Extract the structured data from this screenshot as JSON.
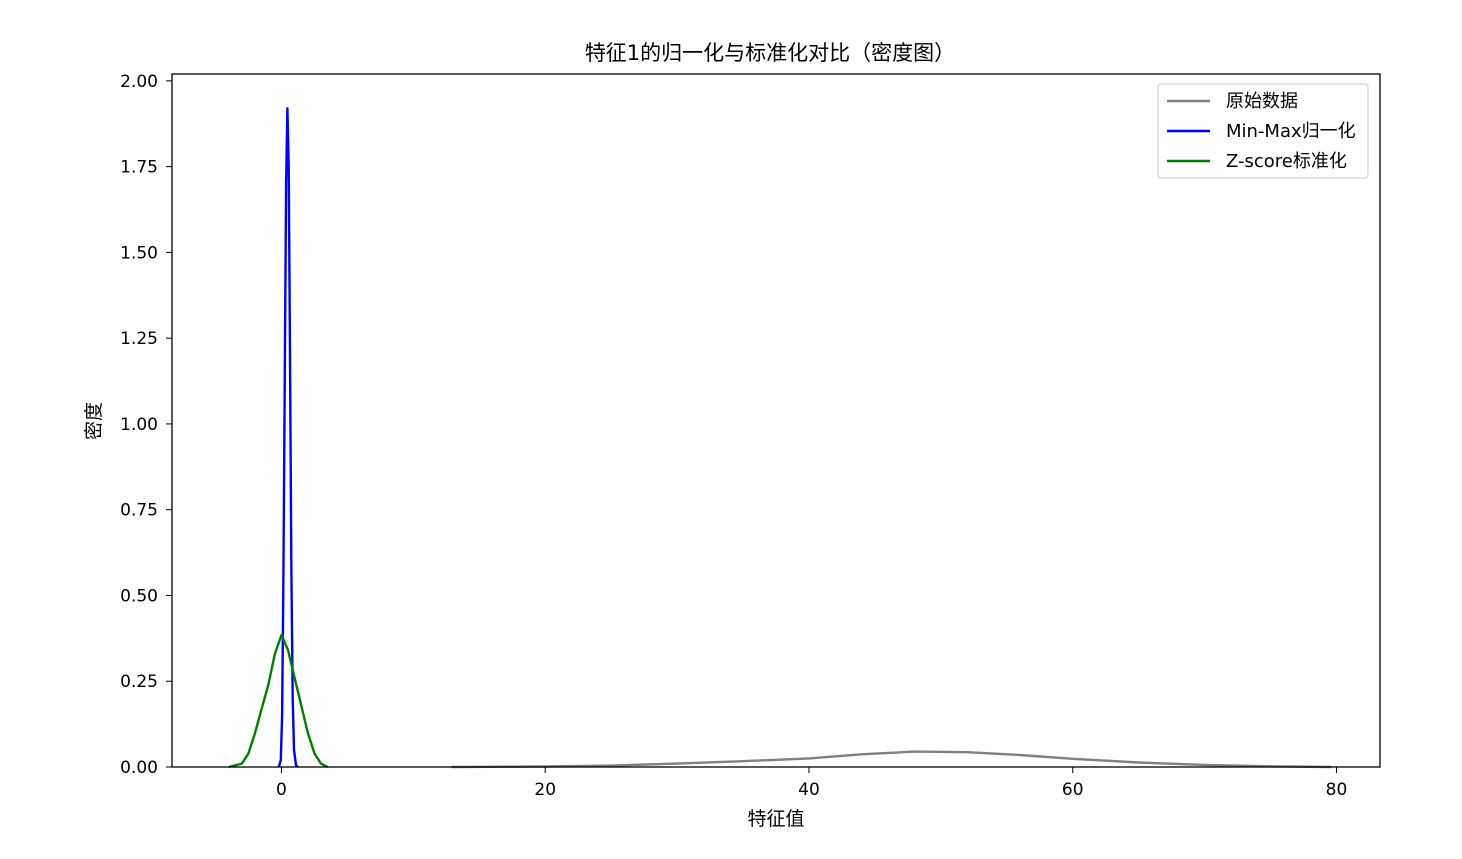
{
  "chart_data": {
    "type": "line",
    "title": "特征1的归一化与标准化对比（密度图）",
    "xlabel": "特征值",
    "ylabel": "密度",
    "xlim": [
      -8.3,
      83.3
    ],
    "ylim": [
      0,
      2.02
    ],
    "xticks": [
      0,
      20,
      40,
      60,
      80
    ],
    "xtick_labels": [
      "0",
      "20",
      "40",
      "60",
      "80"
    ],
    "yticks": [
      0,
      0.25,
      0.5,
      0.75,
      1.0,
      1.25,
      1.5,
      1.75,
      2.0
    ],
    "ytick_labels": [
      "0.00",
      "0.25",
      "0.50",
      "0.75",
      "1.00",
      "1.25",
      "1.50",
      "1.75",
      "2.00"
    ],
    "grid": false,
    "legend_position": "top-right",
    "series": [
      {
        "name": "原始数据",
        "color": "#808080",
        "x": [
          12.9,
          20,
          25,
          30,
          35,
          40,
          44,
          48,
          52,
          56,
          60,
          65,
          70,
          75,
          79.6
        ],
        "y": [
          0.0,
          0.0015,
          0.004,
          0.01,
          0.017,
          0.025,
          0.037,
          0.045,
          0.043,
          0.035,
          0.024,
          0.013,
          0.006,
          0.002,
          0.0
        ]
      },
      {
        "name": "Min-Max归一化",
        "color": "#0000ff",
        "x": [
          -0.2,
          -0.05,
          0.05,
          0.15,
          0.25,
          0.35,
          0.45,
          0.55,
          0.65,
          0.75,
          0.85,
          0.95,
          1.1,
          1.25
        ],
        "y": [
          0.0,
          0.02,
          0.15,
          0.55,
          1.15,
          1.7,
          1.92,
          1.75,
          1.2,
          0.6,
          0.2,
          0.05,
          0.005,
          0.0
        ]
      },
      {
        "name": "Z-score标准化",
        "color": "#008000",
        "x": [
          -4.0,
          -3.0,
          -2.5,
          -2.0,
          -1.5,
          -1.0,
          -0.5,
          0.0,
          0.5,
          1.0,
          1.5,
          2.0,
          2.5,
          3.0,
          3.5
        ],
        "y": [
          0.0,
          0.01,
          0.04,
          0.1,
          0.17,
          0.24,
          0.33,
          0.385,
          0.34,
          0.26,
          0.18,
          0.1,
          0.04,
          0.01,
          0.0
        ]
      }
    ]
  }
}
